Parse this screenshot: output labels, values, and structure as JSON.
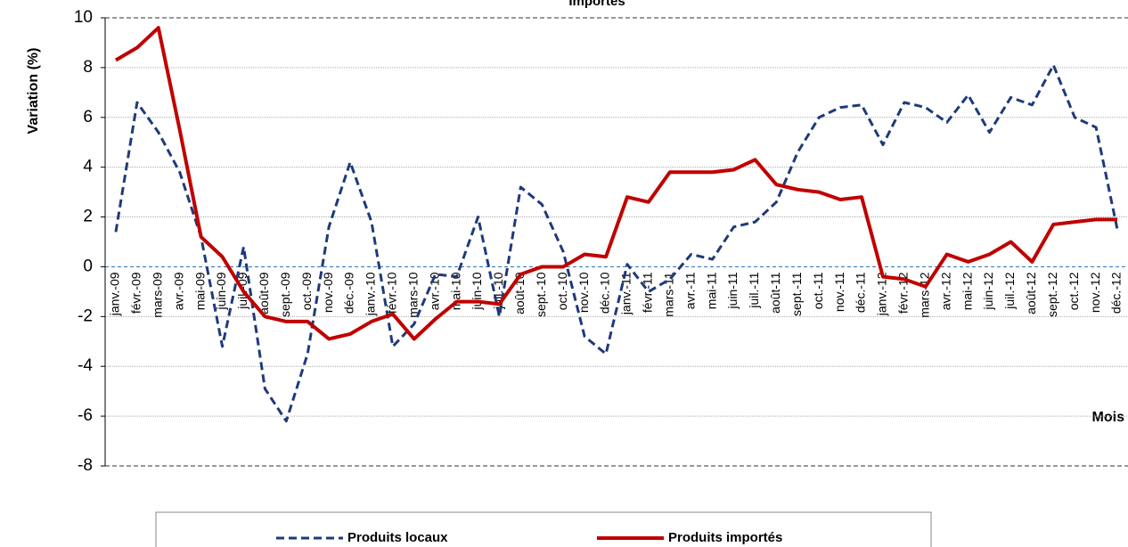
{
  "chart_data": {
    "type": "line",
    "title": "Importés",
    "ylabel": "Variation (%)",
    "xlabel": "Mois",
    "categories": [
      "janv.-09",
      "févr.-09",
      "mars-09",
      "avr.-09",
      "mai-09",
      "juin-09",
      "juil.-09",
      "août-09",
      "sept.-09",
      "oct.-09",
      "nov.-09",
      "déc.-09",
      "janv.-10",
      "févr.-10",
      "mars-10",
      "avr.-10",
      "mai-10",
      "juin-10",
      "juil.-10",
      "août-10",
      "sept.-10",
      "oct.-10",
      "nov.-10",
      "déc.-10",
      "janv.-11",
      "févr.-11",
      "mars-11",
      "avr.-11",
      "mai-11",
      "juin-11",
      "juil.-11",
      "août-11",
      "sept.-11",
      "oct.-11",
      "nov.-11",
      "déc.-11",
      "janv.-12",
      "févr.-12",
      "mars-12",
      "avr.-12",
      "mai-12",
      "juin-12",
      "juil.-12",
      "août-12",
      "sept.-12",
      "oct.-12",
      "nov.-12",
      "déc.-12"
    ],
    "series": [
      {
        "name": "Produits locaux",
        "color": "#1f3a7a",
        "dashed": true,
        "values": [
          1.4,
          6.6,
          5.4,
          3.8,
          1.2,
          -3.2,
          0.8,
          -4.9,
          -6.2,
          -3.5,
          1.6,
          4.2,
          1.8,
          -3.2,
          -2.3,
          -0.3,
          -0.4,
          2.0,
          -2.0,
          3.2,
          2.5,
          0.6,
          -2.8,
          -3.5,
          0.1,
          -1.0,
          -0.5,
          0.5,
          0.3,
          1.6,
          1.8,
          2.6,
          4.6,
          6.0,
          6.4,
          6.5,
          4.9,
          6.6,
          6.4,
          5.8,
          6.9,
          5.4,
          6.8,
          6.5,
          8.1,
          6.0,
          5.6,
          1.5
        ]
      },
      {
        "name": "Produits importés",
        "color": "#c00000",
        "dashed": false,
        "values": [
          8.3,
          8.8,
          9.6,
          5.5,
          1.2,
          0.4,
          -1.0,
          -2.0,
          -2.2,
          -2.2,
          -2.9,
          -2.7,
          -2.2,
          -1.9,
          -2.9,
          -2.1,
          -1.4,
          -1.4,
          -1.5,
          -0.3,
          0.0,
          0.0,
          0.5,
          0.4,
          2.8,
          2.6,
          3.8,
          3.8,
          3.8,
          3.9,
          4.3,
          3.3,
          3.1,
          3.0,
          2.7,
          2.8,
          -0.4,
          -0.5,
          -0.8,
          0.5,
          0.2,
          0.5,
          1.0,
          0.2,
          1.7,
          1.8,
          1.9,
          1.9
        ]
      }
    ],
    "ylim": [
      -8,
      10
    ],
    "yticks": [
      -8,
      -6,
      -4,
      -2,
      0,
      2,
      4,
      6,
      8,
      10
    ],
    "grid": true
  }
}
